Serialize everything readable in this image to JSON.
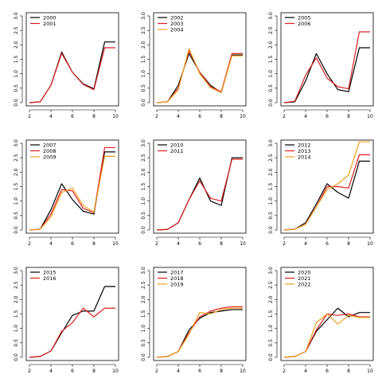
{
  "colors": {
    "black": "#000000",
    "red": "#dd1f1f",
    "orange": "#f0a020"
  },
  "chart_data": [
    {
      "type": "line",
      "x": [
        2,
        3,
        4,
        5,
        6,
        7,
        8,
        9,
        10
      ],
      "xlim": [
        2,
        10
      ],
      "ylim": [
        0,
        3
      ],
      "legend": "top-left",
      "xticks": [
        "2",
        "4",
        "6",
        "8",
        "10"
      ],
      "yticks": [
        "0.0",
        "0.5",
        "1.0",
        "1.5",
        "2.0",
        "2.5",
        "3.0"
      ],
      "series": [
        {
          "name": "2000",
          "color": "#000000",
          "values": [
            0.0,
            0.03,
            0.6,
            1.75,
            1.05,
            0.65,
            0.48,
            2.1,
            2.1
          ]
        },
        {
          "name": "2001",
          "color": "#dd1f1f",
          "values": [
            0.0,
            0.03,
            0.6,
            1.7,
            1.05,
            0.63,
            0.45,
            1.9,
            1.9
          ]
        }
      ]
    },
    {
      "type": "line",
      "x": [
        2,
        3,
        4,
        5,
        6,
        7,
        8,
        9,
        10
      ],
      "xlim": [
        2,
        10
      ],
      "ylim": [
        0,
        3
      ],
      "legend": "top-left",
      "xticks": [
        "2",
        "4",
        "6",
        "8",
        "10"
      ],
      "yticks": [
        "0.0",
        "0.5",
        "1.0",
        "1.5",
        "2.0",
        "2.5",
        "3.0"
      ],
      "series": [
        {
          "name": "2002",
          "color": "#000000",
          "values": [
            0.0,
            0.03,
            0.6,
            1.7,
            1.05,
            0.6,
            0.35,
            1.65,
            1.65
          ]
        },
        {
          "name": "2003",
          "color": "#dd1f1f",
          "values": [
            0.0,
            0.03,
            0.5,
            1.8,
            1.05,
            0.55,
            0.38,
            1.7,
            1.7
          ]
        },
        {
          "name": "2004",
          "color": "#f0a020",
          "values": [
            0.0,
            0.03,
            0.45,
            1.87,
            1.0,
            0.52,
            0.35,
            1.62,
            1.62
          ]
        }
      ]
    },
    {
      "type": "line",
      "x": [
        2,
        3,
        4,
        5,
        6,
        7,
        8,
        9,
        10
      ],
      "xlim": [
        2,
        10
      ],
      "ylim": [
        0,
        3
      ],
      "legend": "top-left",
      "xticks": [
        "2",
        "4",
        "6",
        "8",
        "10"
      ],
      "yticks": [
        "0.0",
        "0.5",
        "1.0",
        "1.5",
        "2.0",
        "2.5",
        "3.0"
      ],
      "series": [
        {
          "name": "2005",
          "color": "#000000",
          "values": [
            0.0,
            0.03,
            0.75,
            1.7,
            1.0,
            0.45,
            0.38,
            1.9,
            1.9
          ]
        },
        {
          "name": "2006",
          "color": "#dd1f1f",
          "values": [
            0.0,
            0.05,
            0.95,
            1.55,
            0.85,
            0.55,
            0.48,
            2.45,
            2.45
          ]
        }
      ]
    },
    {
      "type": "line",
      "x": [
        2,
        3,
        4,
        5,
        6,
        7,
        8,
        9,
        10
      ],
      "xlim": [
        2,
        10
      ],
      "ylim": [
        0,
        3
      ],
      "legend": "top-left",
      "xticks": [
        "2",
        "4",
        "6",
        "8",
        "10"
      ],
      "yticks": [
        "0.0",
        "0.5",
        "1.0",
        "1.5",
        "2.0",
        "2.5",
        "3.0"
      ],
      "series": [
        {
          "name": "2007",
          "color": "#000000",
          "values": [
            0.0,
            0.03,
            0.7,
            1.6,
            1.05,
            0.65,
            0.55,
            2.7,
            2.7
          ]
        },
        {
          "name": "2008",
          "color": "#dd1f1f",
          "values": [
            0.0,
            0.03,
            0.55,
            1.4,
            1.35,
            0.75,
            0.6,
            2.85,
            2.85
          ]
        },
        {
          "name": "2009",
          "color": "#f0a020",
          "values": [
            0.0,
            0.03,
            0.45,
            1.3,
            1.45,
            0.85,
            0.62,
            2.55,
            2.55
          ]
        }
      ]
    },
    {
      "type": "line",
      "x": [
        2,
        3,
        4,
        5,
        6,
        7,
        8,
        9,
        10
      ],
      "xlim": [
        2,
        10
      ],
      "ylim": [
        0,
        3
      ],
      "legend": "top-left",
      "xticks": [
        "2",
        "4",
        "6",
        "8",
        "10"
      ],
      "yticks": [
        "0.0",
        "0.5",
        "1.0",
        "1.5",
        "2.0",
        "2.5",
        "3.0"
      ],
      "series": [
        {
          "name": "2010",
          "color": "#000000",
          "values": [
            0.0,
            0.02,
            0.25,
            1.05,
            1.8,
            1.0,
            0.85,
            2.5,
            2.5
          ]
        },
        {
          "name": "2011",
          "color": "#dd1f1f",
          "values": [
            0.0,
            0.02,
            0.25,
            1.05,
            1.7,
            1.1,
            1.0,
            2.45,
            2.45
          ]
        }
      ]
    },
    {
      "type": "line",
      "x": [
        2,
        3,
        4,
        5,
        6,
        7,
        8,
        9,
        10
      ],
      "xlim": [
        2,
        10
      ],
      "ylim": [
        0,
        3
      ],
      "legend": "top-left",
      "xticks": [
        "2",
        "4",
        "6",
        "8",
        "10"
      ],
      "yticks": [
        "0.0",
        "0.5",
        "1.0",
        "1.5",
        "2.0",
        "2.5",
        "3.0"
      ],
      "series": [
        {
          "name": "2012",
          "color": "#000000",
          "values": [
            0.0,
            0.03,
            0.25,
            0.9,
            1.6,
            1.3,
            1.1,
            2.38,
            2.38
          ]
        },
        {
          "name": "2013",
          "color": "#dd1f1f",
          "values": [
            0.0,
            0.03,
            0.2,
            0.8,
            1.5,
            1.5,
            1.45,
            2.6,
            2.6
          ]
        },
        {
          "name": "2014",
          "color": "#f0a020",
          "values": [
            0.0,
            0.03,
            0.2,
            0.8,
            1.4,
            1.6,
            1.9,
            3.05,
            3.05
          ]
        }
      ]
    },
    {
      "type": "line",
      "x": [
        2,
        3,
        4,
        5,
        6,
        7,
        8,
        9,
        10
      ],
      "xlim": [
        2,
        10
      ],
      "ylim": [
        0,
        3
      ],
      "legend": "top-left",
      "xticks": [
        "2",
        "4",
        "6",
        "8",
        "10"
      ],
      "yticks": [
        "0.0",
        "0.5",
        "1.0",
        "1.5",
        "2.0",
        "2.5",
        "3.0"
      ],
      "series": [
        {
          "name": "2015",
          "color": "#000000",
          "values": [
            0.0,
            0.03,
            0.22,
            0.85,
            1.45,
            1.6,
            1.6,
            2.45,
            2.45
          ]
        },
        {
          "name": "2016",
          "color": "#dd1f1f",
          "values": [
            0.0,
            0.03,
            0.22,
            0.9,
            1.2,
            1.7,
            1.4,
            1.7,
            1.7
          ]
        }
      ]
    },
    {
      "type": "line",
      "x": [
        2,
        3,
        4,
        5,
        6,
        7,
        8,
        9,
        10
      ],
      "xlim": [
        2,
        10
      ],
      "ylim": [
        0,
        3
      ],
      "legend": "top-left",
      "xticks": [
        "2",
        "4",
        "6",
        "8",
        "10"
      ],
      "yticks": [
        "0.0",
        "0.5",
        "1.0",
        "1.5",
        "2.0",
        "2.5",
        "3.0"
      ],
      "series": [
        {
          "name": "2017",
          "color": "#000000",
          "values": [
            0.0,
            0.03,
            0.2,
            0.95,
            1.35,
            1.55,
            1.6,
            1.65,
            1.65
          ]
        },
        {
          "name": "2018",
          "color": "#dd1f1f",
          "values": [
            0.0,
            0.03,
            0.2,
            0.85,
            1.4,
            1.6,
            1.7,
            1.75,
            1.75
          ]
        },
        {
          "name": "2019",
          "color": "#f0a020",
          "values": [
            0.0,
            0.03,
            0.2,
            0.8,
            1.55,
            1.5,
            1.65,
            1.7,
            1.7
          ]
        }
      ]
    },
    {
      "type": "line",
      "x": [
        2,
        3,
        4,
        5,
        6,
        7,
        8,
        9,
        10
      ],
      "xlim": [
        2,
        10
      ],
      "ylim": [
        0,
        3
      ],
      "legend": "top-left",
      "xticks": [
        "2",
        "4",
        "6",
        "8",
        "10"
      ],
      "yticks": [
        "0.0",
        "0.5",
        "1.0",
        "1.5",
        "2.0",
        "2.5",
        "3.0"
      ],
      "series": [
        {
          "name": "2020",
          "color": "#000000",
          "values": [
            0.0,
            0.03,
            0.2,
            0.9,
            1.3,
            1.7,
            1.4,
            1.55,
            1.55
          ]
        },
        {
          "name": "2021",
          "color": "#dd1f1f",
          "values": [
            0.0,
            0.03,
            0.2,
            0.95,
            1.5,
            1.45,
            1.5,
            1.4,
            1.4
          ]
        },
        {
          "name": "2022",
          "color": "#f0a020",
          "values": [
            0.0,
            0.03,
            0.2,
            1.2,
            1.5,
            1.15,
            1.45,
            1.38,
            1.38
          ]
        }
      ]
    }
  ]
}
